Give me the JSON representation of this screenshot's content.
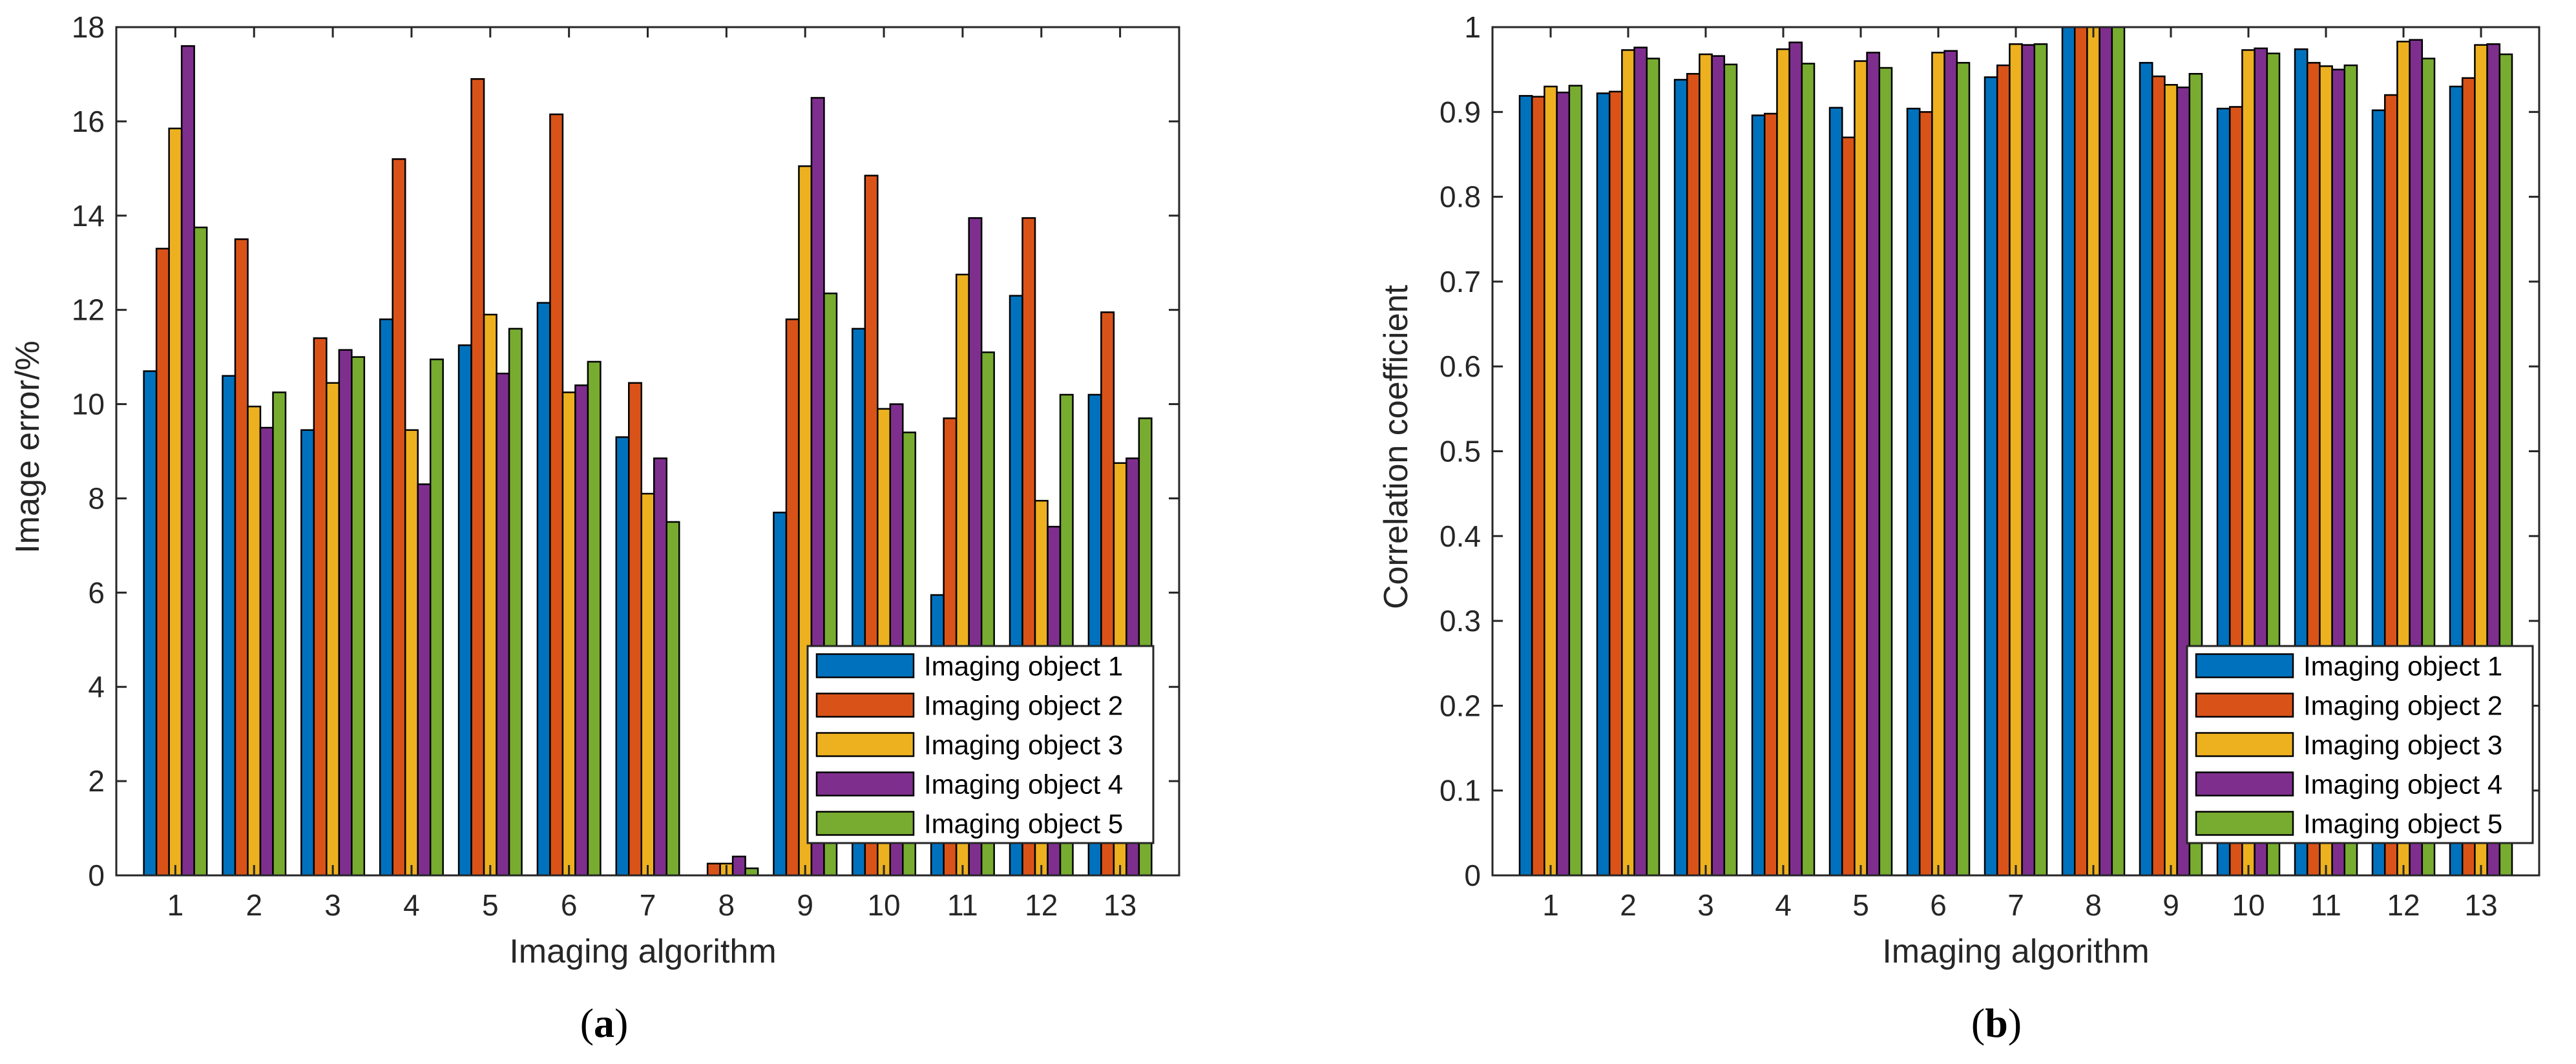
{
  "colors": [
    "#0072BD",
    "#D95319",
    "#EDB120",
    "#7E2F8E",
    "#77AC30"
  ],
  "chart_data": [
    {
      "type": "bar",
      "panel": "a",
      "caption_letter": "a",
      "title": "",
      "xlabel": "Imaging algorithm",
      "ylabel": "Image error/%",
      "categories": [
        "1",
        "2",
        "3",
        "4",
        "5",
        "6",
        "7",
        "8",
        "9",
        "10",
        "11",
        "12",
        "13"
      ],
      "ylim": [
        0,
        18
      ],
      "yticks": [
        0,
        2,
        4,
        6,
        8,
        10,
        12,
        14,
        16,
        18
      ],
      "ytick_labels": [
        "0",
        "2",
        "4",
        "6",
        "8",
        "10",
        "12",
        "14",
        "16",
        "18"
      ],
      "legend_location": "bottom-right",
      "series": [
        {
          "name": "Imaging object 1",
          "values": [
            10.7,
            10.6,
            9.45,
            11.8,
            11.25,
            12.15,
            9.3,
            0.0,
            7.7,
            11.6,
            5.95,
            12.3,
            10.2
          ]
        },
        {
          "name": "Imaging object 2",
          "values": [
            13.3,
            13.5,
            11.4,
            15.2,
            16.9,
            16.15,
            10.45,
            0.25,
            11.8,
            14.85,
            9.7,
            13.95,
            11.95
          ]
        },
        {
          "name": "Imaging object 3",
          "values": [
            15.85,
            9.95,
            10.45,
            9.45,
            11.9,
            10.25,
            8.1,
            0.25,
            15.05,
            9.9,
            12.75,
            7.95,
            8.75
          ]
        },
        {
          "name": "Imaging object 4",
          "values": [
            17.6,
            9.5,
            11.15,
            8.3,
            10.65,
            10.4,
            8.85,
            0.4,
            16.5,
            10.0,
            13.95,
            7.4,
            8.85
          ]
        },
        {
          "name": "Imaging object 5",
          "values": [
            13.75,
            10.25,
            11.0,
            10.95,
            11.6,
            10.9,
            7.5,
            0.15,
            12.35,
            9.4,
            11.1,
            10.2,
            9.7
          ]
        }
      ]
    },
    {
      "type": "bar",
      "panel": "b",
      "caption_letter": "b",
      "title": "",
      "xlabel": "Imaging algorithm",
      "ylabel": "Correlation coefficient",
      "categories": [
        "1",
        "2",
        "3",
        "4",
        "5",
        "6",
        "7",
        "8",
        "9",
        "10",
        "11",
        "12",
        "13"
      ],
      "ylim": [
        0,
        1
      ],
      "yticks": [
        0,
        0.1,
        0.2,
        0.3,
        0.4,
        0.5,
        0.6,
        0.7,
        0.8,
        0.9,
        1
      ],
      "ytick_labels": [
        "0",
        "0.1",
        "0.2",
        "0.3",
        "0.4",
        "0.5",
        "0.6",
        "0.7",
        "0.8",
        "0.9",
        "1"
      ],
      "legend_location": "bottom-right",
      "series": [
        {
          "name": "Imaging object 1",
          "values": [
            0.919,
            0.922,
            0.938,
            0.896,
            0.905,
            0.904,
            0.941,
            1.0,
            0.958,
            0.904,
            0.974,
            0.902,
            0.93
          ]
        },
        {
          "name": "Imaging object 2",
          "values": [
            0.918,
            0.924,
            0.945,
            0.898,
            0.87,
            0.9,
            0.955,
            1.0,
            0.942,
            0.906,
            0.958,
            0.92,
            0.94
          ]
        },
        {
          "name": "Imaging object 3",
          "values": [
            0.93,
            0.973,
            0.968,
            0.974,
            0.96,
            0.97,
            0.98,
            1.0,
            0.932,
            0.973,
            0.954,
            0.983,
            0.979
          ]
        },
        {
          "name": "Imaging object 4",
          "values": [
            0.923,
            0.976,
            0.966,
            0.982,
            0.97,
            0.972,
            0.979,
            1.0,
            0.929,
            0.975,
            0.95,
            0.985,
            0.98
          ]
        },
        {
          "name": "Imaging object 5",
          "values": [
            0.931,
            0.963,
            0.956,
            0.957,
            0.952,
            0.958,
            0.98,
            1.0,
            0.945,
            0.969,
            0.955,
            0.963,
            0.968
          ]
        }
      ]
    }
  ]
}
